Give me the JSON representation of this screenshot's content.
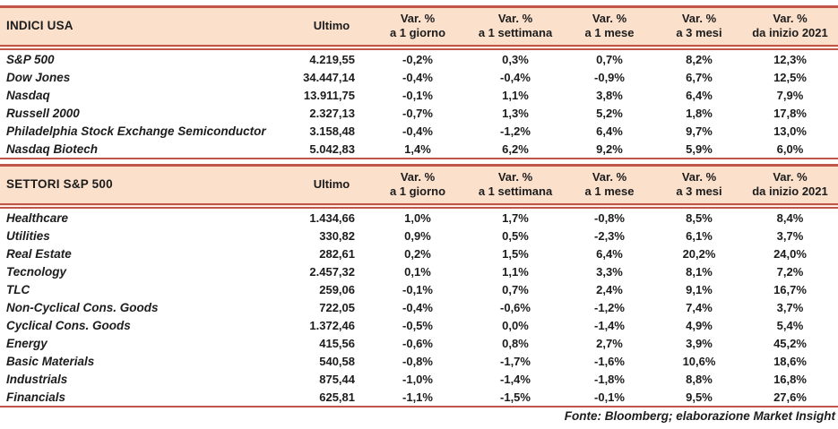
{
  "colors": {
    "border_red": "#c0564a",
    "header_bg": "#fbe0cc",
    "text": "#1c1c1c"
  },
  "columns": {
    "ultimo": "Ultimo",
    "vars": [
      {
        "l1": "Var. %",
        "l2": "a 1 giorno"
      },
      {
        "l1": "Var. %",
        "l2": "a 1 settimana"
      },
      {
        "l1": "Var. %",
        "l2": "a 1 mese"
      },
      {
        "l1": "Var. %",
        "l2": "a 3 mesi"
      },
      {
        "l1": "Var. %",
        "l2": "da inizio 2021"
      }
    ]
  },
  "tables": [
    {
      "title": "INDICI USA",
      "rows": [
        {
          "name": "S&P 500",
          "ultimo": "4.219,55",
          "var_1d": "-0,2%",
          "var_1w": "0,3%",
          "var_1m": "0,7%",
          "var_3m": "8,2%",
          "var_ytd": "12,3%"
        },
        {
          "name": "Dow Jones",
          "ultimo": "34.447,14",
          "var_1d": "-0,4%",
          "var_1w": "-0,4%",
          "var_1m": "-0,9%",
          "var_3m": "6,7%",
          "var_ytd": "12,5%"
        },
        {
          "name": "Nasdaq",
          "ultimo": "13.911,75",
          "var_1d": "-0,1%",
          "var_1w": "1,1%",
          "var_1m": "3,8%",
          "var_3m": "6,4%",
          "var_ytd": "7,9%"
        },
        {
          "name": "Russell 2000",
          "ultimo": "2.327,13",
          "var_1d": "-0,7%",
          "var_1w": "1,3%",
          "var_1m": "5,2%",
          "var_3m": "1,8%",
          "var_ytd": "17,8%"
        },
        {
          "name": "Philadelphia Stock Exchange Semiconductor",
          "ultimo": "3.158,48",
          "var_1d": "-0,4%",
          "var_1w": "-1,2%",
          "var_1m": "6,4%",
          "var_3m": "9,7%",
          "var_ytd": "13,0%"
        },
        {
          "name": "Nasdaq Biotech",
          "ultimo": "5.042,83",
          "var_1d": "1,4%",
          "var_1w": "6,2%",
          "var_1m": "9,2%",
          "var_3m": "5,9%",
          "var_ytd": "6,0%"
        }
      ]
    },
    {
      "title": "SETTORI S&P 500",
      "rows": [
        {
          "name": "Healthcare",
          "ultimo": "1.434,66",
          "var_1d": "1,0%",
          "var_1w": "1,7%",
          "var_1m": "-0,8%",
          "var_3m": "8,5%",
          "var_ytd": "8,4%"
        },
        {
          "name": "Utilities",
          "ultimo": "330,82",
          "var_1d": "0,9%",
          "var_1w": "0,5%",
          "var_1m": "-2,3%",
          "var_3m": "6,1%",
          "var_ytd": "3,7%"
        },
        {
          "name": "Real Estate",
          "ultimo": "282,61",
          "var_1d": "0,2%",
          "var_1w": "1,5%",
          "var_1m": "6,4%",
          "var_3m": "20,2%",
          "var_ytd": "24,0%"
        },
        {
          "name": "Tecnology",
          "ultimo": "2.457,32",
          "var_1d": "0,1%",
          "var_1w": "1,1%",
          "var_1m": "3,3%",
          "var_3m": "8,1%",
          "var_ytd": "7,2%"
        },
        {
          "name": "TLC",
          "ultimo": "259,06",
          "var_1d": "-0,1%",
          "var_1w": "0,7%",
          "var_1m": "2,4%",
          "var_3m": "9,1%",
          "var_ytd": "16,7%"
        },
        {
          "name": "Non-Cyclical Cons. Goods",
          "ultimo": "722,05",
          "var_1d": "-0,4%",
          "var_1w": "-0,6%",
          "var_1m": "-1,2%",
          "var_3m": "7,4%",
          "var_ytd": "3,7%"
        },
        {
          "name": "Cyclical Cons. Goods",
          "ultimo": "1.372,46",
          "var_1d": "-0,5%",
          "var_1w": "0,0%",
          "var_1m": "-1,4%",
          "var_3m": "4,9%",
          "var_ytd": "5,4%"
        },
        {
          "name": "Energy",
          "ultimo": "415,56",
          "var_1d": "-0,6%",
          "var_1w": "0,8%",
          "var_1m": "2,7%",
          "var_3m": "3,9%",
          "var_ytd": "45,2%"
        },
        {
          "name": "Basic Materials",
          "ultimo": "540,58",
          "var_1d": "-0,8%",
          "var_1w": "-1,7%",
          "var_1m": "-1,6%",
          "var_3m": "10,6%",
          "var_ytd": "18,6%"
        },
        {
          "name": "Industrials",
          "ultimo": "875,44",
          "var_1d": "-1,0%",
          "var_1w": "-1,4%",
          "var_1m": "-1,8%",
          "var_3m": "8,8%",
          "var_ytd": "16,8%"
        },
        {
          "name": "Financials",
          "ultimo": "625,81",
          "var_1d": "-1,1%",
          "var_1w": "-1,5%",
          "var_1m": "-0,1%",
          "var_3m": "9,5%",
          "var_ytd": "27,6%"
        }
      ]
    }
  ],
  "footer": {
    "source": "Fonte: Bloomberg; elaborazione Market Insight"
  }
}
